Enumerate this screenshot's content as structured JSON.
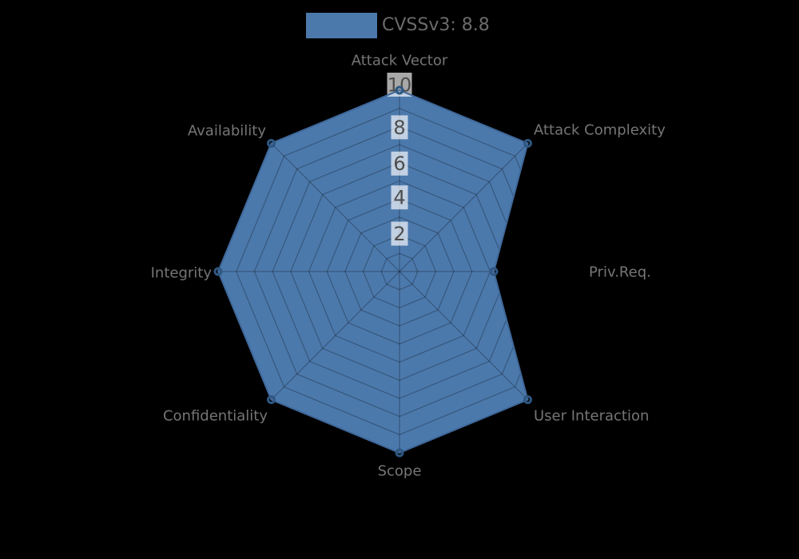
{
  "legend": {
    "label": "CVSSv3: 8.8"
  },
  "colors": {
    "background": "#000000",
    "series_fill": "#4c79ac",
    "series_edge": "#3f689a",
    "marker_stroke": "#2f5781",
    "grid": "rgba(0,0,0,0.28)",
    "axis_label_text": "#757575",
    "tick_text": "#4d4d4d",
    "tick_box": "rgba(255,255,255,0.66)",
    "legend_text": "#6b6b6b"
  },
  "chart_data": {
    "type": "radar",
    "title": "CVSSv3: 8.8",
    "categories": [
      "Attack Vector",
      "Attack Complexity",
      "Priv.Req.",
      "User Interaction",
      "Scope",
      "Confidentiality",
      "Integrity",
      "Availability"
    ],
    "series": [
      {
        "name": "CVSSv3: 8.8",
        "values": [
          10,
          10,
          5.2,
          10,
          10,
          10,
          10,
          10
        ]
      }
    ],
    "rlim": [
      0,
      10
    ],
    "ring_step": 1,
    "rticks": [
      2,
      4,
      6,
      8,
      10
    ],
    "grid": true,
    "legend_position": "top-center",
    "direction": "clockwise",
    "start_axis": "top"
  }
}
